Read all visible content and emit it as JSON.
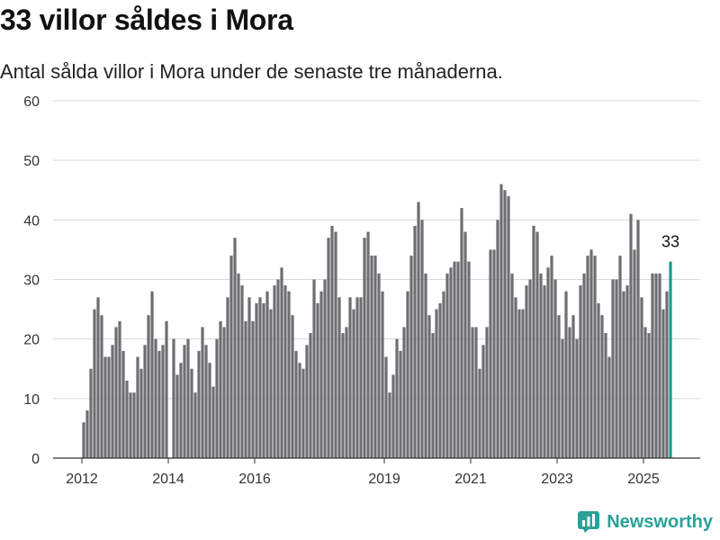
{
  "title": "33 villor såldes i Mora",
  "subtitle": "Antal sålda villor i Mora under de senaste tre månaderna.",
  "brand": {
    "name": "Newsworthy",
    "icon": "newsworthy-logo-icon",
    "color": "#2aa198"
  },
  "colors": {
    "bar": "#6e6d72",
    "highlight": "#1a9a93",
    "grid": "#d9d9d9",
    "axis": "#333333"
  },
  "chart_data": {
    "type": "bar",
    "title": "33 villor såldes i Mora",
    "subtitle": "Antal sålda villor i Mora under de senaste tre månaderna.",
    "xlabel": "",
    "ylabel": "",
    "ylim": [
      0,
      60
    ],
    "yticks": [
      0,
      10,
      20,
      30,
      40,
      50,
      60
    ],
    "xticks": [
      {
        "label": "2012",
        "date": "2012-01"
      },
      {
        "label": "2014",
        "date": "2014-01"
      },
      {
        "label": "2016",
        "date": "2016-01"
      },
      {
        "label": "2019",
        "date": "2019-01"
      },
      {
        "label": "2021",
        "date": "2021-01"
      },
      {
        "label": "2023",
        "date": "2023-01"
      },
      {
        "label": "2025",
        "date": "2025-01"
      }
    ],
    "grid": true,
    "highlight_label": "33",
    "series": [
      {
        "start": "2012-01",
        "frequency": "monthly",
        "values": [
          6,
          8,
          15,
          25,
          27,
          24,
          17,
          17,
          19,
          22,
          23,
          18,
          13,
          11,
          11,
          17,
          15,
          19,
          24,
          28,
          20,
          18,
          19,
          23,
          null,
          20,
          14,
          16,
          19,
          20,
          15,
          11,
          18,
          22,
          19,
          16,
          12,
          20,
          23,
          22,
          27,
          34,
          37,
          31,
          29,
          23,
          27,
          23,
          26,
          27,
          26,
          28,
          25,
          29,
          30,
          32,
          29,
          28,
          24,
          18,
          16,
          15,
          19,
          21,
          30,
          26,
          28,
          30,
          37,
          39,
          38,
          27,
          21,
          22,
          27,
          25,
          27,
          27,
          37,
          38,
          34,
          34,
          31,
          28,
          17,
          11,
          14,
          20,
          18,
          22,
          28,
          34,
          39,
          43,
          40,
          31,
          24,
          21,
          25,
          26,
          28,
          31,
          32,
          33,
          33,
          42,
          38,
          33,
          22,
          22,
          15,
          19,
          22,
          35,
          35,
          40,
          46,
          45,
          44,
          31,
          27,
          25,
          25,
          29,
          30,
          39,
          38,
          31,
          29,
          32,
          34,
          30,
          24,
          20,
          28,
          22,
          24,
          20,
          29,
          31,
          34,
          35,
          34,
          26,
          24,
          21,
          17,
          30,
          30,
          34,
          28,
          29,
          41,
          35,
          40,
          27,
          22,
          21,
          31,
          31,
          31,
          25,
          28,
          33
        ]
      }
    ]
  }
}
